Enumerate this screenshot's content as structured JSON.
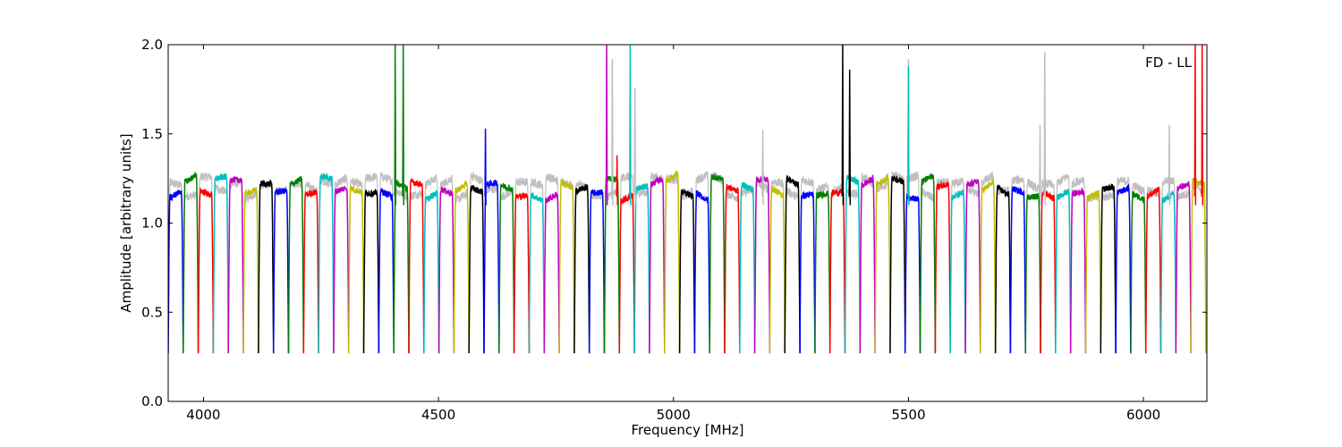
{
  "chart_data": {
    "type": "line",
    "title": "",
    "annotation": "FD - LL",
    "xlabel": "Frequency [MHz]",
    "ylabel": "Amplitude [arbitrary units]",
    "xlim": [
      3925,
      6135
    ],
    "ylim": [
      0.0,
      2.0
    ],
    "xticks": [
      4000,
      4500,
      5000,
      5500,
      6000
    ],
    "yticks": [
      0.0,
      0.5,
      1.0,
      1.5,
      2.0
    ],
    "xtick_labels": [
      "4000",
      "4500",
      "5000",
      "5500",
      "6000"
    ],
    "ytick_labels": [
      "0.0",
      "0.5",
      "1.0",
      "1.5",
      "2.0"
    ],
    "grid": false,
    "legend": "none",
    "background_series_color": "#bfbfbf",
    "color_cycle": [
      "#0000ff",
      "#008000",
      "#ff0000",
      "#00bfbf",
      "#bf00bf",
      "#bfbf00",
      "#000000"
    ],
    "channel_width_mhz": 32,
    "channel_start_mhz": 3925,
    "channel_count": 69,
    "channel_profile": {
      "edge_min": 0.27,
      "plateau": 1.2,
      "plateau_variation": 0.06
    },
    "spikes": [
      {
        "x": 4408,
        "y": 2.0,
        "color": "#008000"
      },
      {
        "x": 4425,
        "y": 2.0,
        "color": "#008000"
      },
      {
        "x": 4600,
        "y": 1.53,
        "color": "#0000ff"
      },
      {
        "x": 4858,
        "y": 2.0,
        "color": "#bf00bf"
      },
      {
        "x": 4870,
        "y": 1.92,
        "color": "#bfbfbf"
      },
      {
        "x": 4880,
        "y": 1.38,
        "color": "#ff0000"
      },
      {
        "x": 4908,
        "y": 2.0,
        "color": "#00bfbf"
      },
      {
        "x": 4918,
        "y": 1.76,
        "color": "#bfbfbf"
      },
      {
        "x": 5190,
        "y": 1.52,
        "color": "#bfbfbf"
      },
      {
        "x": 5360,
        "y": 2.0,
        "color": "#000000"
      },
      {
        "x": 5375,
        "y": 1.86,
        "color": "#000000"
      },
      {
        "x": 5500,
        "y": 1.92,
        "color": "#bfbfbf"
      },
      {
        "x": 5500,
        "y": 1.88,
        "color": "#00bfbf"
      },
      {
        "x": 5780,
        "y": 1.55,
        "color": "#bfbfbf"
      },
      {
        "x": 5790,
        "y": 1.96,
        "color": "#bfbfbf"
      },
      {
        "x": 6055,
        "y": 1.55,
        "color": "#bfbfbf"
      },
      {
        "x": 6110,
        "y": 2.0,
        "color": "#ff0000"
      },
      {
        "x": 6125,
        "y": 2.0,
        "color": "#ff0000"
      }
    ]
  }
}
